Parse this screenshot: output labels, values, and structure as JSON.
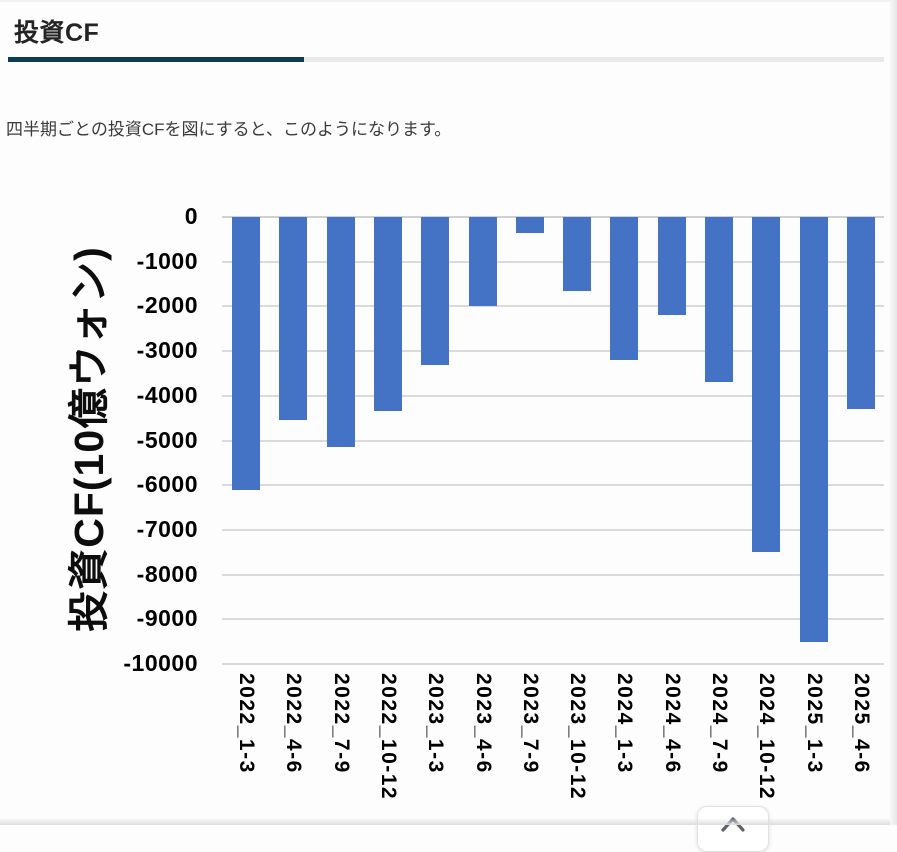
{
  "page": {
    "heading": "投資CF",
    "intro": "四半期ごとの投資CFを図にすると、このようになります。"
  },
  "chart_data": {
    "type": "bar",
    "title": "",
    "xlabel": "",
    "ylabel": "投資CF(10億ウォン)",
    "categories": [
      "2022_1-3",
      "2022_4-6",
      "2022_7-9",
      "2022_10-12",
      "2023_1-3",
      "2023_4-6",
      "2023_7-9",
      "2023_10-12",
      "2024_1-3",
      "2024_4-6",
      "2024_7-9",
      "2024_10-12",
      "2025_1-3",
      "2025_4-6"
    ],
    "values": [
      -6100,
      -4550,
      -5150,
      -4350,
      -3300,
      -2000,
      -350,
      -1650,
      -3200,
      -2200,
      -3700,
      -7500,
      -9500,
      -4300
    ],
    "ylim": [
      -10000,
      0
    ],
    "yticks": [
      0,
      -1000,
      -2000,
      -3000,
      -4000,
      -5000,
      -6000,
      -7000,
      -8000,
      -9000,
      -10000
    ],
    "grid": true,
    "legend": "none",
    "bar_color": "#4472C4",
    "gridline_color": "#dadada"
  },
  "scroll_top_button": {
    "icon": "chevron-up-icon"
  },
  "colors": {
    "heading_rule_dark": "#0f3b4e",
    "heading_rule_light": "#e9e9e9",
    "background": "#fdfdfd"
  }
}
